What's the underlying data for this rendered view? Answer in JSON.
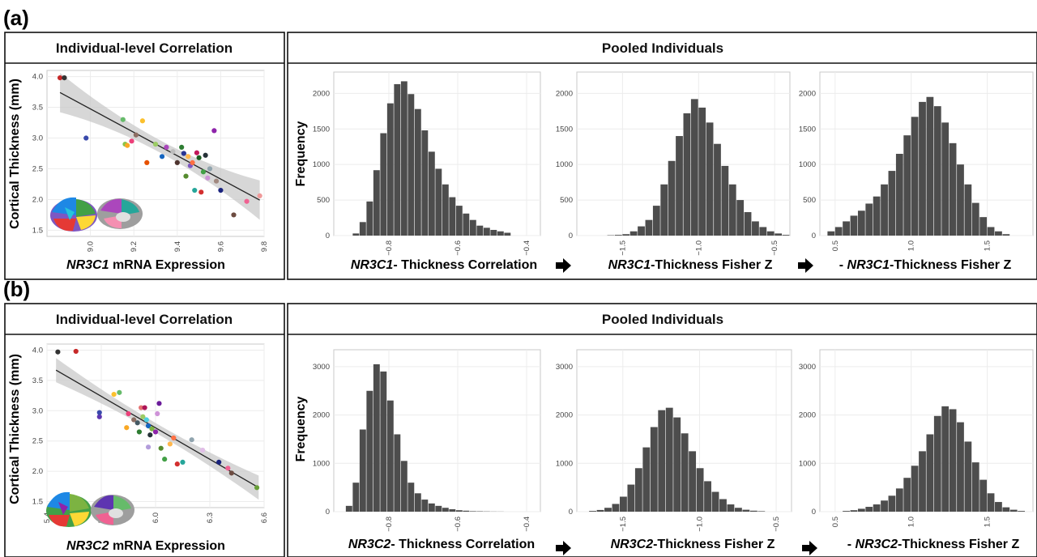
{
  "panels": [
    {
      "label": "(a)",
      "left_title": "Individual-level Correlation",
      "right_title": "Pooled Individuals",
      "scatter_ylabel": "Cortical Thickness (mm)",
      "scatter_xlabel": {
        "gene": "NR3C1",
        "rest": " mRNA Expression"
      },
      "hist_ylabel": "Frequency",
      "hist_xlabels": [
        {
          "pre": "",
          "gene": "NR3C1",
          "post": "- Thickness Correlation"
        },
        {
          "pre": "",
          "gene": "NR3C1",
          "post": "-Thickness Fisher Z"
        },
        {
          "pre": "- ",
          "gene": "NR3C1",
          "post": "-Thickness Fisher Z"
        }
      ]
    },
    {
      "label": "(b)",
      "left_title": "Individual-level Correlation",
      "right_title": "Pooled Individuals",
      "scatter_ylabel": "Cortical Thickness (mm)",
      "scatter_xlabel": {
        "gene": "NR3C2",
        "rest": " mRNA Expression"
      },
      "hist_ylabel": "Frequency",
      "hist_xlabels": [
        {
          "pre": "",
          "gene": "NR3C2",
          "post": "- Thickness Correlation"
        },
        {
          "pre": "",
          "gene": "NR3C2",
          "post": "-Thickness Fisher Z"
        },
        {
          "pre": "- ",
          "gene": "NR3C2",
          "post": "-Thickness Fisher Z"
        }
      ]
    }
  ],
  "colors": {
    "bar": "#4d4d4d",
    "grid": "#ececec",
    "frame": "#c8c8c8",
    "ribbon": "#c9c9c9",
    "fit": "#222222"
  },
  "chart_data": [
    {
      "type": "scatter",
      "id": "a-scatter",
      "xlabel": "NR3C1 mRNA Expression",
      "ylabel": "Cortical Thickness (mm)",
      "xlim": [
        8.8,
        9.8
      ],
      "ylim": [
        1.4,
        4.1
      ],
      "xticks": [
        9.0,
        9.2,
        9.4,
        9.6,
        9.8
      ],
      "yticks": [
        1.5,
        2.0,
        2.5,
        3.0,
        3.5,
        4.0
      ],
      "tick_format": "1",
      "fit": {
        "x": [
          8.86,
          9.78
        ],
        "y": [
          3.74,
          1.99
        ],
        "band": [
          0.1,
          0.32
        ]
      },
      "points": [
        [
          8.86,
          3.98,
          "#c62828"
        ],
        [
          8.88,
          3.98,
          "#333333"
        ],
        [
          8.98,
          3.0,
          "#3949ab"
        ],
        [
          9.15,
          3.3,
          "#66bb6a"
        ],
        [
          9.16,
          2.9,
          "#8bc34a"
        ],
        [
          9.17,
          2.88,
          "#f9a825"
        ],
        [
          9.19,
          2.95,
          "#ec407a"
        ],
        [
          9.21,
          3.05,
          "#8d6e63"
        ],
        [
          9.24,
          3.28,
          "#fbc02d"
        ],
        [
          9.26,
          2.6,
          "#e65100"
        ],
        [
          9.3,
          2.9,
          "#9ccc65"
        ],
        [
          9.33,
          2.7,
          "#1565c0"
        ],
        [
          9.35,
          2.85,
          "#ab47bc"
        ],
        [
          9.38,
          2.78,
          "#bdbdbd"
        ],
        [
          9.4,
          2.6,
          "#4e342e"
        ],
        [
          9.42,
          2.85,
          "#2e7d32"
        ],
        [
          9.43,
          2.75,
          "#283593"
        ],
        [
          9.44,
          2.38,
          "#558b2f"
        ],
        [
          9.46,
          2.55,
          "#7e57c2"
        ],
        [
          9.47,
          2.6,
          "#ff7043"
        ],
        [
          9.49,
          2.76,
          "#c2185b"
        ],
        [
          9.5,
          2.68,
          "#1b5e20"
        ],
        [
          9.52,
          2.45,
          "#43a047"
        ],
        [
          9.53,
          2.72,
          "#263238"
        ],
        [
          9.54,
          2.35,
          "#ce93d8"
        ],
        [
          9.55,
          2.5,
          "#90a4ae"
        ],
        [
          9.48,
          2.15,
          "#26a69a"
        ],
        [
          9.51,
          2.12,
          "#d32f2f"
        ],
        [
          9.57,
          3.12,
          "#8e24aa"
        ],
        [
          9.6,
          2.15,
          "#1a237e"
        ],
        [
          9.66,
          1.75,
          "#6d4c41"
        ],
        [
          9.72,
          1.97,
          "#f06292"
        ],
        [
          9.78,
          2.06,
          "#ef9a9a"
        ],
        [
          9.45,
          2.7,
          "#ffb74d"
        ],
        [
          9.58,
          2.3,
          "#a1887f"
        ]
      ]
    },
    {
      "type": "bar",
      "id": "a-hist1",
      "xlabel": "NR3C1- Thickness Correlation",
      "ylabel": "Frequency",
      "xlim": [
        -0.96,
        -0.36
      ],
      "ylim": [
        0,
        2300
      ],
      "xticks": [
        -0.8,
        -0.6,
        -0.4
      ],
      "yticks": [
        0,
        500,
        1000,
        1500,
        2000
      ],
      "tick_format": "1",
      "bin_start": -0.905,
      "bin_width": 0.02,
      "values": [
        30,
        190,
        480,
        920,
        1440,
        1860,
        2130,
        2170,
        1990,
        1780,
        1480,
        1180,
        940,
        720,
        540,
        420,
        310,
        220,
        140,
        110,
        80,
        60,
        40
      ]
    },
    {
      "type": "bar",
      "id": "a-hist2",
      "xlabel": "NR3C1-Thickness Fisher Z",
      "ylabel": "Frequency",
      "xlim": [
        -1.8,
        -0.4
      ],
      "ylim": [
        0,
        2300
      ],
      "xticks": [
        -1.5,
        -1.0,
        -0.5
      ],
      "yticks": [
        0,
        500,
        1000,
        1500,
        2000
      ],
      "tick_format": "1",
      "bin_start": -1.6,
      "bin_width": 0.05,
      "values": [
        5,
        10,
        20,
        60,
        130,
        220,
        420,
        720,
        1050,
        1400,
        1720,
        1920,
        1800,
        1590,
        1290,
        980,
        720,
        500,
        330,
        200,
        120,
        60,
        30,
        10
      ]
    },
    {
      "type": "bar",
      "id": "a-hist3",
      "xlabel": "- NR3C1-Thickness Fisher Z",
      "ylabel": "Frequency",
      "xlim": [
        0.4,
        1.8
      ],
      "ylim": [
        0,
        2300
      ],
      "xticks": [
        0.5,
        1.0,
        1.5
      ],
      "yticks": [
        0,
        500,
        1000,
        1500,
        2000
      ],
      "tick_format": "1",
      "bin_start": 0.45,
      "bin_width": 0.05,
      "values": [
        60,
        120,
        200,
        280,
        350,
        450,
        550,
        720,
        910,
        1150,
        1410,
        1670,
        1880,
        1950,
        1820,
        1590,
        1300,
        1000,
        720,
        460,
        260,
        120,
        60,
        20
      ]
    },
    {
      "type": "scatter",
      "id": "b-scatter",
      "xlabel": "NR3C2 mRNA Expression",
      "ylabel": "Cortical Thickness (mm)",
      "xlim": [
        5.4,
        6.6
      ],
      "ylim": [
        1.4,
        4.1
      ],
      "xticks": [
        5.4,
        5.7,
        6.0,
        6.3,
        6.6
      ],
      "yticks": [
        1.5,
        2.0,
        2.5,
        3.0,
        3.5,
        4.0
      ],
      "tick_format": "1",
      "fit": {
        "x": [
          5.45,
          6.57
        ],
        "y": [
          3.67,
          1.73
        ],
        "band": [
          0.08,
          0.2
        ]
      },
      "points": [
        [
          5.46,
          3.97,
          "#333333"
        ],
        [
          5.56,
          3.98,
          "#c62828"
        ],
        [
          5.69,
          2.9,
          "#5e35b1"
        ],
        [
          5.69,
          2.97,
          "#3949ab"
        ],
        [
          5.77,
          3.27,
          "#fbc02d"
        ],
        [
          5.8,
          3.3,
          "#66bb6a"
        ],
        [
          5.84,
          2.72,
          "#f9a825"
        ],
        [
          5.85,
          2.95,
          "#ec407a"
        ],
        [
          5.88,
          2.85,
          "#8d6e63"
        ],
        [
          5.9,
          2.8,
          "#455a64"
        ],
        [
          5.91,
          2.65,
          "#2e7d32"
        ],
        [
          5.92,
          3.05,
          "#e57373"
        ],
        [
          5.93,
          2.9,
          "#9ccc65"
        ],
        [
          5.94,
          3.05,
          "#ad1457"
        ],
        [
          5.95,
          2.85,
          "#4dd0e1"
        ],
        [
          5.96,
          2.75,
          "#1565c0"
        ],
        [
          5.97,
          2.6,
          "#263238"
        ],
        [
          5.98,
          2.7,
          "#7cb342"
        ],
        [
          5.96,
          2.4,
          "#b39ddb"
        ],
        [
          6.0,
          2.65,
          "#8e24aa"
        ],
        [
          6.01,
          2.95,
          "#ce93d8"
        ],
        [
          6.02,
          3.12,
          "#6a1b9a"
        ],
        [
          6.03,
          2.38,
          "#558b2f"
        ],
        [
          6.05,
          2.2,
          "#43a047"
        ],
        [
          6.08,
          2.45,
          "#ffb74d"
        ],
        [
          6.12,
          2.12,
          "#d32f2f"
        ],
        [
          6.15,
          2.15,
          "#26a69a"
        ],
        [
          6.2,
          2.52,
          "#90a4ae"
        ],
        [
          6.26,
          2.35,
          "#e1bee7"
        ],
        [
          6.35,
          2.15,
          "#1a237e"
        ],
        [
          6.4,
          2.05,
          "#f06292"
        ],
        [
          6.42,
          1.97,
          "#6d4c41"
        ],
        [
          6.56,
          1.73,
          "#689f38"
        ],
        [
          6.1,
          2.55,
          "#ff7043"
        ]
      ]
    },
    {
      "type": "bar",
      "id": "b-hist1",
      "xlabel": "NR3C2- Thickness Correlation",
      "ylabel": "Frequency",
      "xlim": [
        -0.96,
        -0.36
      ],
      "ylim": [
        0,
        3350
      ],
      "xticks": [
        -0.8,
        -0.6,
        -0.4
      ],
      "yticks": [
        0,
        1000,
        2000,
        3000
      ],
      "tick_format": "1",
      "bin_start": -0.925,
      "bin_width": 0.02,
      "values": [
        120,
        600,
        1700,
        2500,
        3050,
        2900,
        2300,
        1600,
        1050,
        600,
        380,
        250,
        170,
        120,
        80,
        50,
        30,
        20,
        10,
        8,
        5,
        3,
        2
      ]
    },
    {
      "type": "bar",
      "id": "b-hist2",
      "xlabel": "NR3C2-Thickness Fisher Z",
      "ylabel": "Frequency",
      "xlim": [
        -1.8,
        -0.4
      ],
      "ylim": [
        0,
        3350
      ],
      "xticks": [
        -1.5,
        -1.0,
        -0.5
      ],
      "yticks": [
        0,
        1000,
        2000,
        3000
      ],
      "tick_format": "1",
      "bin_start": -1.72,
      "bin_width": 0.05,
      "values": [
        15,
        35,
        80,
        160,
        310,
        560,
        900,
        1330,
        1750,
        2100,
        2150,
        1950,
        1620,
        1250,
        900,
        630,
        410,
        260,
        150,
        80,
        40,
        20,
        10
      ]
    },
    {
      "type": "bar",
      "id": "b-hist3",
      "xlabel": "- NR3C2-Thickness Fisher Z",
      "ylabel": "Frequency",
      "xlim": [
        0.4,
        1.8
      ],
      "ylim": [
        0,
        3350
      ],
      "xticks": [
        0.5,
        1.0,
        1.5
      ],
      "yticks": [
        0,
        1000,
        2000,
        3000
      ],
      "tick_format": "1",
      "bin_start": 0.55,
      "bin_width": 0.05,
      "values": [
        15,
        30,
        60,
        100,
        150,
        230,
        330,
        480,
        700,
        950,
        1250,
        1600,
        1980,
        2180,
        2120,
        1850,
        1450,
        1020,
        660,
        380,
        200,
        90,
        40,
        15
      ]
    }
  ]
}
